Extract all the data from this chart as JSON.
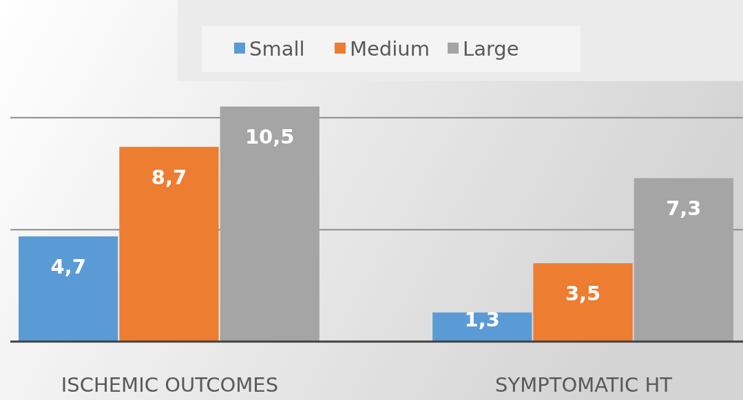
{
  "chart_data": {
    "type": "bar",
    "categories": [
      "ISCHEMIC OUTCOMES",
      "SYMPTOMATIC HT"
    ],
    "series": [
      {
        "name": "Small",
        "color": "#5b9bd5",
        "values": [
          4.7,
          1.3
        ],
        "value_labels": [
          "4,7",
          "1,3"
        ]
      },
      {
        "name": "Medium",
        "color": "#ed7d31",
        "values": [
          8.7,
          3.5
        ],
        "value_labels": [
          "8,7",
          "3,5"
        ]
      },
      {
        "name": "Large",
        "color": "#a5a5a5",
        "values": [
          10.5,
          7.3
        ],
        "value_labels": [
          "10,5",
          "7,3"
        ]
      }
    ],
    "ref_lines": [
      {
        "axis": "y",
        "value": 5,
        "color": "#8c8c8c"
      },
      {
        "axis": "y",
        "value": 10,
        "color": "#8c8c8c"
      }
    ],
    "legend": "top",
    "tick_labels": "x"
  }
}
